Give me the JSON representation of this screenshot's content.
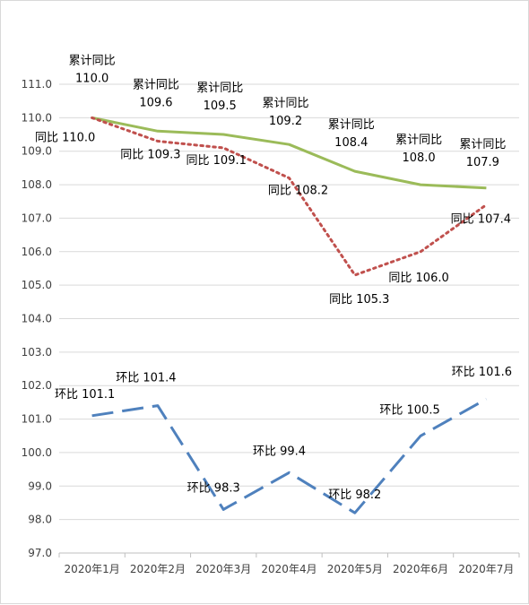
{
  "chart_data": {
    "type": "line",
    "categories": [
      "2020年1月",
      "2020年2月",
      "2020年3月",
      "2020年4月",
      "2020年5月",
      "2020年6月",
      "2020年7月"
    ],
    "ylim": [
      97.0,
      111.0
    ],
    "yticks": [
      "97.0",
      "98.0",
      "99.0",
      "100.0",
      "101.0",
      "102.0",
      "103.0",
      "104.0",
      "105.0",
      "106.0",
      "107.0",
      "108.0",
      "109.0",
      "110.0",
      "111.0"
    ],
    "grid": "horizontal",
    "series": [
      {
        "key": "cumulative",
        "color": "#9bbb59",
        "style": "solid",
        "values": [
          110.0,
          109.6,
          109.5,
          109.2,
          108.4,
          108.0,
          107.9
        ],
        "labels": [
          "累计同比\n110.0",
          "累计同比\n109.6",
          "累计同比\n109.5",
          "累计同比\n109.2",
          "累计同比\n108.4",
          "累计同比\n108.0",
          "累计同比\n107.9"
        ]
      },
      {
        "key": "yoy",
        "color": "#c0504d",
        "style": "dotted",
        "values": [
          110.0,
          109.3,
          109.1,
          108.2,
          105.3,
          106.0,
          107.4
        ],
        "labels": [
          "同比 110.0",
          "同比 109.3",
          "同比 109.1",
          "同比 108.2",
          "同比 105.3",
          "同比 106.0",
          "同比 107.4"
        ]
      },
      {
        "key": "mom",
        "color": "#4f81bd",
        "style": "dashed",
        "values": [
          101.1,
          101.4,
          98.3,
          99.4,
          98.2,
          100.5,
          101.6
        ],
        "labels": [
          "环比 101.1",
          "环比 101.4",
          "环比 98.3",
          "环比 99.4",
          "环比 98.2",
          "环比 100.5",
          "环比 101.6"
        ]
      }
    ]
  }
}
